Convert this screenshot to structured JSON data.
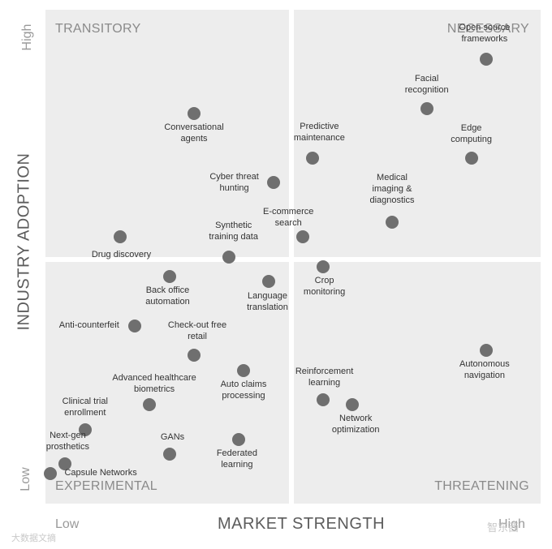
{
  "chart_data": {
    "type": "scatter",
    "xlabel": "MARKET STRENGTH",
    "ylabel": "INDUSTRY ADOPTION",
    "x_ticks": [
      "Low",
      "High"
    ],
    "y_ticks": [
      "Low",
      "High"
    ],
    "xlim": [
      0,
      100
    ],
    "ylim": [
      0,
      100
    ],
    "quadrants": {
      "top_left": "TRANSITORY",
      "top_right": "NECESSARY",
      "bottom_left": "EXPERIMENTAL",
      "bottom_right": "THREATENING"
    },
    "points": [
      {
        "label": "Open source\nframeworks",
        "x": 89,
        "y": 90
      },
      {
        "label": "Facial\nrecognition",
        "x": 77,
        "y": 80
      },
      {
        "label": "Edge\ncomputing",
        "x": 86,
        "y": 70
      },
      {
        "label": "Conversational\nagents",
        "x": 30,
        "y": 79
      },
      {
        "label": "Predictive\nmaintenance",
        "x": 54,
        "y": 70
      },
      {
        "label": "Cyber threat\nhunting",
        "x": 46,
        "y": 65
      },
      {
        "label": "Medical\nimaging &\ndiagnostics",
        "x": 70,
        "y": 57
      },
      {
        "label": "E-commerce\nsearch",
        "x": 52,
        "y": 54
      },
      {
        "label": "Synthetic\ntraining data",
        "x": 37,
        "y": 50
      },
      {
        "label": "Drug discovery",
        "x": 15,
        "y": 54
      },
      {
        "label": "Crop\nmonitoring",
        "x": 56,
        "y": 48
      },
      {
        "label": "Back office\nautomation",
        "x": 25,
        "y": 46
      },
      {
        "label": "Language\ntranslation",
        "x": 45,
        "y": 45
      },
      {
        "label": "Anti-counterfeit",
        "x": 18,
        "y": 36
      },
      {
        "label": "Autonomous\nnavigation",
        "x": 89,
        "y": 31
      },
      {
        "label": "Check-out free\nretail",
        "x": 30,
        "y": 30
      },
      {
        "label": "Auto claims\nprocessing",
        "x": 40,
        "y": 27
      },
      {
        "label": "Advanced healthcare\nbiometrics",
        "x": 21,
        "y": 20
      },
      {
        "label": "Reinforcement\nlearning",
        "x": 56,
        "y": 21
      },
      {
        "label": "Network\noptimization",
        "x": 62,
        "y": 20
      },
      {
        "label": "Clinical trial\nenrollment",
        "x": 8,
        "y": 15
      },
      {
        "label": "GANs",
        "x": 25,
        "y": 10
      },
      {
        "label": "Federated\nlearning",
        "x": 39,
        "y": 13
      },
      {
        "label": "Next-gen\nprosthetics",
        "x": 4,
        "y": 8
      },
      {
        "label": "Capsule Networks",
        "x": 1,
        "y": 6
      }
    ]
  },
  "watermark": {
    "left": "大数据文摘",
    "right": "智东西"
  }
}
